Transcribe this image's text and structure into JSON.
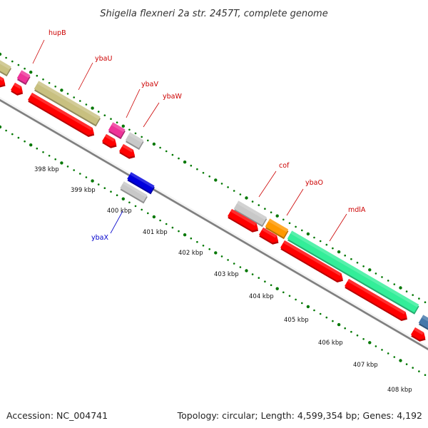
{
  "title": "Shigella flexneri 2a str. 2457T, complete genome",
  "footer": {
    "accession": "Accession: NC_004741",
    "summary": "Topology: circular; Length: 4,599,354 bp; Genes: 4,192"
  },
  "ruler": {
    "labels": [
      "398 kbp",
      "399 kbp",
      "400 kbp",
      "401 kbp",
      "402 kbp",
      "403 kbp",
      "404 kbp",
      "405 kbp",
      "406 kbp",
      "407 kbp",
      "408 kbp"
    ]
  },
  "genes": [
    {
      "name": "hupB",
      "color": "#cc0000"
    },
    {
      "name": "ybaU",
      "color": "#cc0000"
    },
    {
      "name": "ybaV",
      "color": "#cc0000"
    },
    {
      "name": "ybaW",
      "color": "#cc0000"
    },
    {
      "name": "ybaX",
      "color": "#0000cc"
    },
    {
      "name": "cof",
      "color": "#cc0000"
    },
    {
      "name": "ybaO",
      "color": "#cc0000"
    },
    {
      "name": "mdlA",
      "color": "#cc0000"
    }
  ],
  "feature_colors": {
    "cds": "#ff0000",
    "gene_olive": "#c8c080",
    "gene_magenta": "#ee3399",
    "gene_grey": "#c8c8c8",
    "gene_orange": "#ff9900",
    "gene_green": "#33ee99",
    "gene_blue": "#0000dd",
    "gene_steel": "#4477aa",
    "backbone": "#888888",
    "tick": "#007700"
  }
}
